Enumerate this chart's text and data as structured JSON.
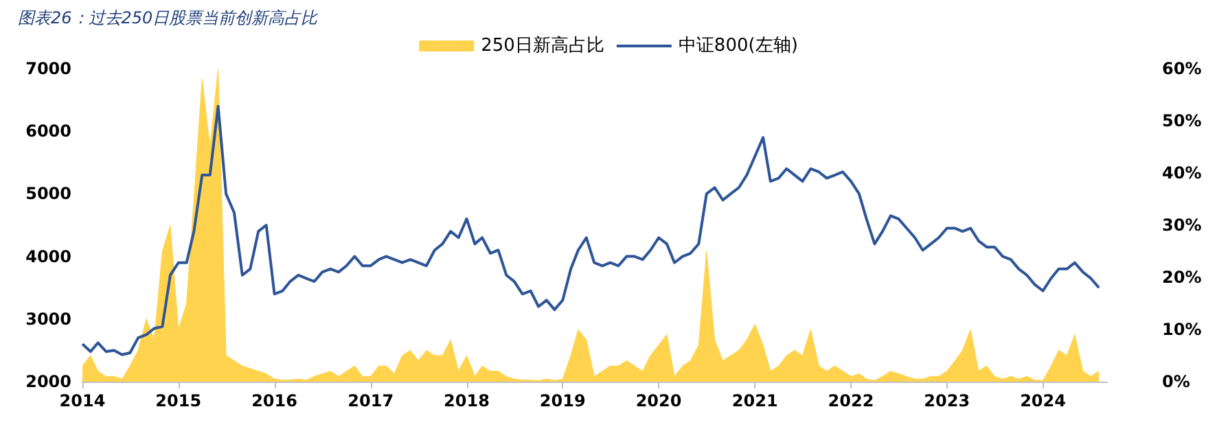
{
  "chart_data": {
    "type": "line",
    "title": "图表26：过去250日股票当前创新高占比",
    "x": [
      "2014-01",
      "2014-02",
      "2014-03",
      "2014-04",
      "2014-05",
      "2014-06",
      "2014-07",
      "2014-08",
      "2014-09",
      "2014-10",
      "2014-11",
      "2014-12",
      "2015-01",
      "2015-02",
      "2015-03",
      "2015-04",
      "2015-05",
      "2015-06",
      "2015-07",
      "2015-08",
      "2015-09",
      "2015-10",
      "2015-11",
      "2015-12",
      "2016-01",
      "2016-02",
      "2016-03",
      "2016-04",
      "2016-05",
      "2016-06",
      "2016-07",
      "2016-08",
      "2016-09",
      "2016-10",
      "2016-11",
      "2016-12",
      "2017-01",
      "2017-02",
      "2017-03",
      "2017-04",
      "2017-05",
      "2017-06",
      "2017-07",
      "2017-08",
      "2017-09",
      "2017-10",
      "2017-11",
      "2017-12",
      "2018-01",
      "2018-02",
      "2018-03",
      "2018-04",
      "2018-05",
      "2018-06",
      "2018-07",
      "2018-08",
      "2018-09",
      "2018-10",
      "2018-11",
      "2018-12",
      "2019-01",
      "2019-02",
      "2019-03",
      "2019-04",
      "2019-05",
      "2019-06",
      "2019-07",
      "2019-08",
      "2019-09",
      "2019-10",
      "2019-11",
      "2019-12",
      "2020-01",
      "2020-02",
      "2020-03",
      "2020-04",
      "2020-05",
      "2020-06",
      "2020-07",
      "2020-08",
      "2020-09",
      "2020-10",
      "2020-11",
      "2020-12",
      "2021-01",
      "2021-02",
      "2021-03",
      "2021-04",
      "2021-05",
      "2021-06",
      "2021-07",
      "2021-08",
      "2021-09",
      "2021-10",
      "2021-11",
      "2021-12",
      "2022-01",
      "2022-02",
      "2022-03",
      "2022-04",
      "2022-05",
      "2022-06",
      "2022-07",
      "2022-08",
      "2022-09",
      "2022-10",
      "2022-11",
      "2022-12",
      "2023-01",
      "2023-02",
      "2023-03",
      "2023-04",
      "2023-05",
      "2023-06",
      "2023-07",
      "2023-08",
      "2023-09",
      "2023-10",
      "2023-11",
      "2023-12",
      "2024-01",
      "2024-02",
      "2024-03",
      "2024-04",
      "2024-05",
      "2024-06",
      "2024-07",
      "2024-08"
    ],
    "series": [
      {
        "name": "250日新高占比",
        "type": "area",
        "axis": "y2",
        "color": "#ffd34d",
        "values": [
          3,
          5,
          2,
          1,
          1,
          0.5,
          3,
          6,
          12,
          8,
          25,
          30,
          10,
          15,
          35,
          58,
          45,
          60,
          5,
          4,
          3,
          2.5,
          2,
          1.5,
          0.5,
          0.3,
          0.3,
          0.5,
          0.3,
          1,
          1.5,
          2,
          1,
          2,
          3,
          1,
          1,
          3,
          3,
          1.5,
          5,
          6,
          4,
          6,
          5,
          5,
          8,
          2,
          5,
          1,
          3,
          2,
          2,
          1,
          0.5,
          0.3,
          0.3,
          0.2,
          0.5,
          0.2,
          0.5,
          5,
          10,
          8,
          1,
          2,
          3,
          3,
          4,
          3,
          2,
          5,
          7,
          9,
          1,
          3,
          4,
          7,
          25,
          8,
          4,
          5,
          6,
          8,
          11,
          7,
          2,
          3,
          5,
          6,
          5,
          10,
          3,
          2,
          3,
          2,
          1,
          1.5,
          0.5,
          0.2,
          1,
          2,
          1.5,
          1,
          0.5,
          0.5,
          1,
          1,
          2,
          4,
          6,
          10,
          2,
          3,
          1,
          0.5,
          1,
          0.5,
          1,
          0.3,
          0.2,
          3,
          6,
          5,
          9,
          2,
          1,
          2
        ]
      },
      {
        "name": "中证800(左轴)",
        "color": "#2e5597",
        "values": [
          2600,
          2480,
          2620,
          2480,
          2500,
          2430,
          2460,
          2700,
          2750,
          2850,
          2880,
          3700,
          3900,
          3900,
          4400,
          5300,
          5300,
          6400,
          5000,
          4700,
          3700,
          3800,
          4400,
          4500,
          3400,
          3450,
          3600,
          3700,
          3650,
          3600,
          3750,
          3800,
          3750,
          3850,
          4000,
          3850,
          3850,
          3950,
          4000,
          3950,
          3900,
          3950,
          3900,
          3850,
          4100,
          4200,
          4400,
          4300,
          4600,
          4200,
          4300,
          4050,
          4100,
          3700,
          3600,
          3400,
          3450,
          3200,
          3300,
          3150,
          3300,
          3800,
          4100,
          4300,
          3900,
          3850,
          3900,
          3850,
          4000,
          4000,
          3950,
          4100,
          4300,
          4200,
          3900,
          4000,
          4050,
          4200,
          5000,
          5100,
          4900,
          5000,
          5100,
          5300,
          5600,
          5900,
          5200,
          5250,
          5400,
          5300,
          5200,
          5400,
          5350,
          5250,
          5300,
          5350,
          5200,
          5000,
          4600,
          4200,
          4400,
          4650,
          4600,
          4450,
          4300,
          4100,
          4200,
          4300,
          4450,
          4450,
          4400,
          4450,
          4250,
          4150,
          4150,
          4000,
          3950,
          3800,
          3700,
          3550,
          3450,
          3650,
          3800,
          3800,
          3900,
          3750,
          3650,
          3500
        ]
      }
    ],
    "xlim": [
      "2014",
      "2024-09"
    ],
    "xticks": [
      "2014",
      "2015",
      "2016",
      "2017",
      "2018",
      "2019",
      "2020",
      "2021",
      "2022",
      "2023",
      "2024"
    ],
    "ylim": [
      2000,
      7000
    ],
    "yticks": [
      2000,
      3000,
      4000,
      5000,
      6000,
      7000
    ],
    "y2lim": [
      0,
      60
    ],
    "y2ticks": [
      {
        "value": 0,
        "label": "0%"
      },
      {
        "value": 10,
        "label": "10%"
      },
      {
        "value": 20,
        "label": "20%"
      },
      {
        "value": 30,
        "label": "30%"
      },
      {
        "value": 40,
        "label": "40%"
      },
      {
        "value": 50,
        "label": "50%"
      },
      {
        "value": 60,
        "label": "60%"
      }
    ],
    "legend": "top",
    "grid": false
  }
}
